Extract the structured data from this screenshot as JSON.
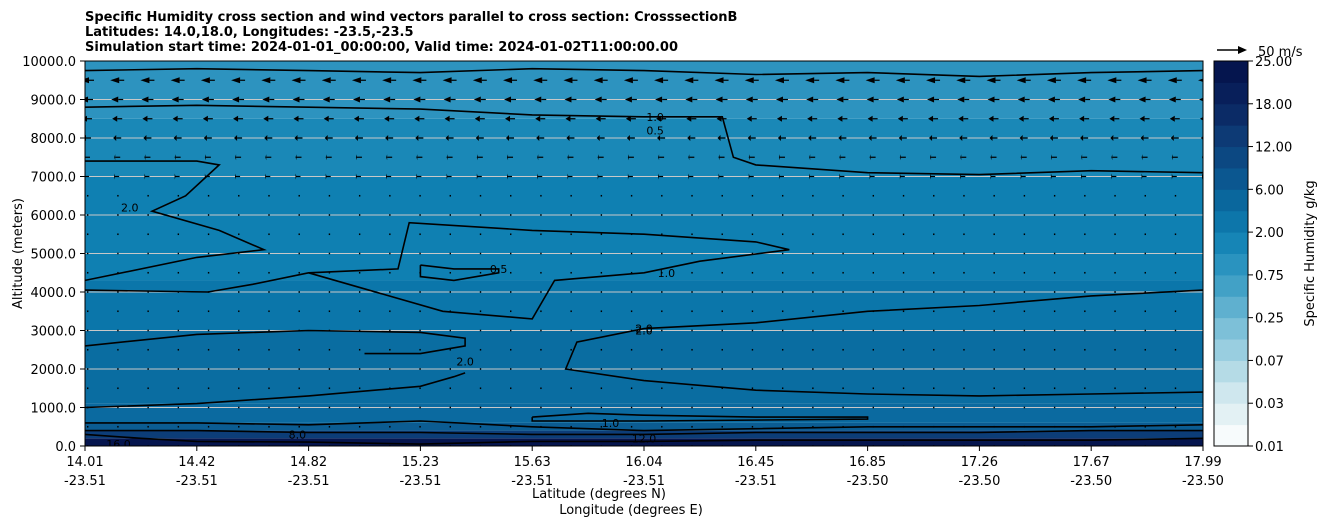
{
  "title": {
    "line1": "Specific Humidity cross section and wind vectors parallel to cross section: CrosssectionB",
    "line2": "Latitudes: 14.0,18.0, Longitudes: -23.5,-23.5",
    "line3": "Simulation start time: 2024-01-01_00:00:00, Valid time: 2024-01-02T11:00:00.00"
  },
  "chart_data": {
    "type": "heatmap",
    "xlabel_line1": "Latitude (degrees N)",
    "xlabel_line2": "Longitude (degrees E)",
    "ylabel": "Altitude (meters)",
    "ylim": [
      0,
      10000
    ],
    "yticks": [
      "0.0",
      "1000.0",
      "2000.0",
      "3000.0",
      "4000.0",
      "5000.0",
      "6000.0",
      "7000.0",
      "8000.0",
      "9000.0",
      "10000.0"
    ],
    "x_range": [
      0,
      1
    ],
    "xticks": [
      {
        "pos": 0.0,
        "lat": "14.01",
        "lon": "-23.51"
      },
      {
        "pos": 0.1,
        "lat": "14.42",
        "lon": "-23.51"
      },
      {
        "pos": 0.2,
        "lat": "14.82",
        "lon": "-23.51"
      },
      {
        "pos": 0.3,
        "lat": "15.23",
        "lon": "-23.51"
      },
      {
        "pos": 0.4,
        "lat": "15.63",
        "lon": "-23.51"
      },
      {
        "pos": 0.5,
        "lat": "16.04",
        "lon": "-23.51"
      },
      {
        "pos": 0.6,
        "lat": "16.45",
        "lon": "-23.51"
      },
      {
        "pos": 0.7,
        "lat": "16.85",
        "lon": "-23.50"
      },
      {
        "pos": 0.8,
        "lat": "17.26",
        "lon": "-23.50"
      },
      {
        "pos": 0.9,
        "lat": "17.67",
        "lon": "-23.50"
      },
      {
        "pos": 1.0,
        "lat": "17.99",
        "lon": "-23.50"
      }
    ],
    "grid": "horizontal",
    "colorbar": {
      "label": "Specific Humidity g/kg",
      "levels": [
        "0.01",
        "0.03",
        "0.07",
        "0.25",
        "0.75",
        "2.00",
        "6.00",
        "12.00",
        "18.00",
        "25.00"
      ],
      "colors": [
        "#f7fbfc",
        "#e3f1f4",
        "#cfe7ee",
        "#b5dbe6",
        "#99cee0",
        "#7dc0d8",
        "#5fb0cf",
        "#42a1c6",
        "#2a93bf",
        "#1685b6",
        "#0d76aa",
        "#0a679d",
        "#0b5790",
        "#0c4882",
        "#0d3a75",
        "#0b2b66",
        "#081f5a",
        "#05154e"
      ]
    },
    "quiver_key": {
      "label": "50 m/s",
      "speed": 50
    },
    "layers": [
      {
        "z0": 0,
        "z1": 200,
        "color": "#05154e"
      },
      {
        "z0": 200,
        "z1": 400,
        "color": "#0c3d78"
      },
      {
        "z0": 400,
        "z1": 600,
        "color": "#0b5c92"
      },
      {
        "z0": 600,
        "z1": 1100,
        "color": "#0b6aa0"
      },
      {
        "z0": 1100,
        "z1": 3000,
        "color": "#0a6da1"
      },
      {
        "z0": 3000,
        "z1": 4300,
        "color": "#0b76aa"
      },
      {
        "z0": 4300,
        "z1": 7000,
        "color": "#0f80b2"
      },
      {
        "z0": 7000,
        "z1": 8500,
        "color": "#1a88b7"
      },
      {
        "z0": 8500,
        "z1": 10000,
        "color": "#2d93bf"
      }
    ],
    "contours": [
      {
        "level": "0.5",
        "label_at": [
          0.51,
          8200
        ],
        "points": [
          [
            0.0,
            9750
          ],
          [
            0.1,
            9800
          ],
          [
            0.2,
            9750
          ],
          [
            0.3,
            9700
          ],
          [
            0.4,
            9800
          ],
          [
            0.5,
            9750
          ],
          [
            0.6,
            9650
          ],
          [
            0.7,
            9700
          ],
          [
            0.8,
            9600
          ],
          [
            0.9,
            9700
          ],
          [
            1.0,
            9750
          ]
        ]
      },
      {
        "level": "1.0",
        "label_at": [
          0.51,
          8550
        ],
        "points": [
          [
            0.0,
            8800
          ],
          [
            0.1,
            8850
          ],
          [
            0.2,
            8800
          ],
          [
            0.3,
            8750
          ],
          [
            0.4,
            8600
          ],
          [
            0.5,
            8550
          ],
          [
            0.57,
            8550
          ],
          [
            0.58,
            7500
          ],
          [
            0.6,
            7300
          ],
          [
            0.7,
            7100
          ],
          [
            0.8,
            7050
          ],
          [
            0.9,
            7150
          ],
          [
            1.0,
            7100
          ]
        ]
      },
      {
        "level": "2.0",
        "label_at": [
          0.04,
          6200
        ],
        "points": [
          [
            0.0,
            7400
          ],
          [
            0.1,
            7400
          ],
          [
            0.12,
            7300
          ],
          [
            0.09,
            6500
          ],
          [
            0.06,
            6100
          ],
          [
            0.12,
            5600
          ],
          [
            0.16,
            5100
          ],
          [
            0.1,
            4900
          ],
          [
            0.0,
            4300
          ]
        ]
      },
      {
        "level": "1.0",
        "label_at": [
          0.52,
          4500
        ],
        "points": [
          [
            0.0,
            4050
          ],
          [
            0.11,
            4000
          ],
          [
            0.15,
            4200
          ],
          [
            0.2,
            4500
          ],
          [
            0.28,
            4600
          ],
          [
            0.29,
            5800
          ],
          [
            0.4,
            5600
          ],
          [
            0.5,
            5500
          ],
          [
            0.6,
            5300
          ],
          [
            0.63,
            5100
          ],
          [
            0.55,
            4800
          ],
          [
            0.5,
            4500
          ],
          [
            0.42,
            4300
          ],
          [
            0.4,
            3300
          ],
          [
            0.32,
            3500
          ],
          [
            0.2,
            4500
          ]
        ]
      },
      {
        "level": "0.5",
        "label_at": [
          0.37,
          4600
        ],
        "points": [
          [
            0.3,
            4700
          ],
          [
            0.33,
            4600
          ],
          [
            0.37,
            4600
          ],
          [
            0.37,
            4500
          ],
          [
            0.33,
            4300
          ],
          [
            0.3,
            4400
          ],
          [
            0.3,
            4700
          ]
        ]
      },
      {
        "level": "2.0",
        "label_at": [
          0.5,
          3000
        ],
        "points": [
          [
            0.0,
            2600
          ],
          [
            0.1,
            2900
          ],
          [
            0.2,
            3000
          ],
          [
            0.3,
            2950
          ],
          [
            0.34,
            2800
          ],
          [
            0.34,
            2600
          ],
          [
            0.3,
            2400
          ],
          [
            0.25,
            2400
          ]
        ]
      },
      {
        "level": "2.0",
        "label_at": [
          0.34,
          2200
        ],
        "points": [
          [
            0.0,
            1000
          ],
          [
            0.1,
            1100
          ],
          [
            0.2,
            1300
          ],
          [
            0.3,
            1550
          ],
          [
            0.33,
            1800
          ],
          [
            0.34,
            1900
          ]
        ]
      },
      {
        "level": "2.0",
        "label_at": [
          0.5,
          3050
        ],
        "points": [
          [
            1.0,
            4050
          ],
          [
            0.9,
            3900
          ],
          [
            0.8,
            3650
          ],
          [
            0.7,
            3500
          ],
          [
            0.6,
            3200
          ],
          [
            0.5,
            3050
          ],
          [
            0.44,
            2700
          ],
          [
            0.43,
            2000
          ],
          [
            0.5,
            1700
          ],
          [
            0.6,
            1450
          ],
          [
            0.7,
            1350
          ],
          [
            0.8,
            1300
          ],
          [
            0.9,
            1350
          ],
          [
            1.0,
            1400
          ]
        ]
      },
      {
        "level": "1.0",
        "label_at": [
          0.47,
          600
        ],
        "points": [
          [
            0.4,
            750
          ],
          [
            0.45,
            850
          ],
          [
            0.5,
            800
          ],
          [
            0.6,
            750
          ],
          [
            0.7,
            750
          ],
          [
            0.7,
            700
          ],
          [
            0.5,
            650
          ],
          [
            0.4,
            650
          ],
          [
            0.4,
            750
          ]
        ]
      },
      {
        "level": "8.0",
        "label_at": [
          0.19,
          300
        ],
        "points": [
          [
            0.0,
            600
          ],
          [
            0.1,
            600
          ],
          [
            0.2,
            550
          ],
          [
            0.3,
            650
          ],
          [
            0.4,
            500
          ],
          [
            0.5,
            400
          ],
          [
            0.6,
            450
          ],
          [
            0.7,
            500
          ],
          [
            0.8,
            500
          ],
          [
            0.9,
            500
          ],
          [
            1.0,
            550
          ]
        ]
      },
      {
        "level": "12.0",
        "label_at": [
          0.5,
          200
        ],
        "points": [
          [
            0.0,
            400
          ],
          [
            0.1,
            400
          ],
          [
            0.2,
            350
          ],
          [
            0.3,
            350
          ],
          [
            0.4,
            300
          ],
          [
            0.5,
            300
          ],
          [
            0.6,
            350
          ],
          [
            0.7,
            350
          ],
          [
            0.8,
            350
          ],
          [
            0.9,
            400
          ],
          [
            1.0,
            400
          ]
        ]
      },
      {
        "level": "16.0",
        "label_at": [
          0.03,
          50
        ],
        "points": [
          [
            0.0,
            300
          ],
          [
            0.05,
            200
          ],
          [
            0.1,
            120
          ],
          [
            0.2,
            100
          ],
          [
            0.3,
            50
          ],
          [
            0.4,
            120
          ],
          [
            0.5,
            120
          ],
          [
            0.6,
            150
          ],
          [
            0.7,
            150
          ],
          [
            0.8,
            150
          ],
          [
            0.9,
            150
          ],
          [
            1.0,
            200
          ]
        ]
      }
    ]
  }
}
